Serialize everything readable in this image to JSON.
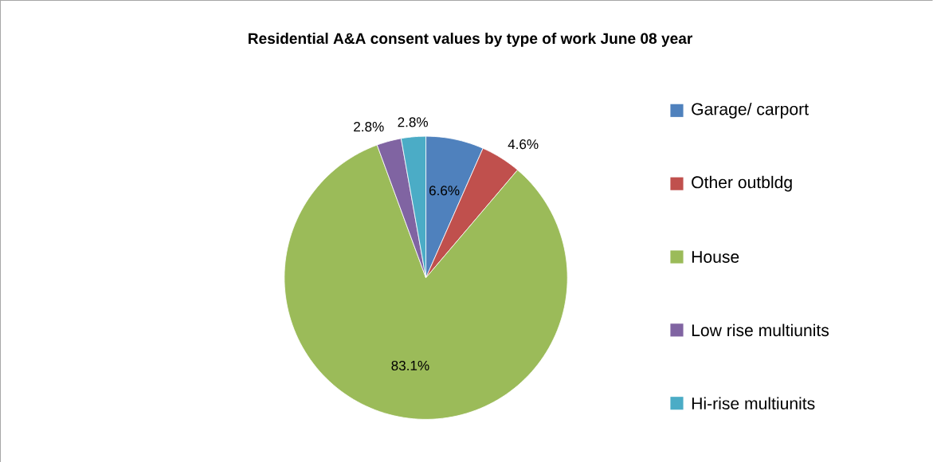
{
  "chart_data": {
    "type": "pie",
    "title": "Residential A&A consent values by type of work June 08 year",
    "categories": [
      "Garage/ carport",
      "Other outbldg",
      "House",
      "Low rise multiunits",
      "Hi-rise multiunits"
    ],
    "values": [
      6.6,
      4.6,
      83.1,
      2.8,
      2.8
    ],
    "colors": [
      "#4f81bd",
      "#c0504d",
      "#9bbb59",
      "#8064a2",
      "#4bacc6"
    ],
    "value_labels": [
      "6.6%",
      "4.6%",
      "83.1%",
      "2.8%",
      "2.8%"
    ],
    "legend": "right"
  }
}
